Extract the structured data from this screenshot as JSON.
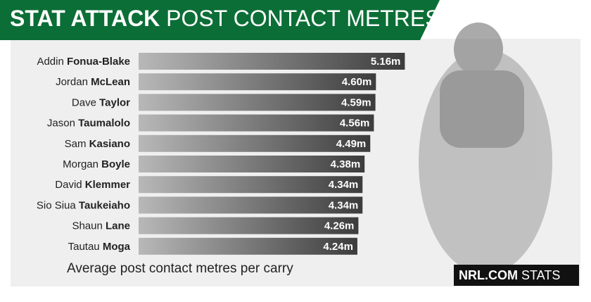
{
  "chart_data": {
    "type": "bar",
    "orientation": "horizontal",
    "title": "STAT ATTACK",
    "subtitle": "POST CONTACT METRES",
    "xlabel": "Average post contact metres per carry",
    "brand": "NRL.COM",
    "brand_suffix": "STATS",
    "categories": [
      "Addin Fonua-Blake",
      "Jordan McLean",
      "Dave Taylor",
      "Jason Taumalolo",
      "Sam Kasiano",
      "Morgan Boyle",
      "David Klemmer",
      "Sio Siua Taukeiaho",
      "Shaun Lane",
      "Tautau Moga"
    ],
    "values": [
      5.16,
      4.6,
      4.59,
      4.56,
      4.49,
      4.38,
      4.34,
      4.34,
      4.26,
      4.24
    ],
    "value_labels": [
      "5.16m",
      "4.60m",
      "4.59m",
      "4.56m",
      "4.49m",
      "4.38m",
      "4.34m",
      "4.34m",
      "4.26m",
      "4.24m"
    ],
    "color": "#3c3c3c",
    "xlim": [
      0,
      6
    ]
  }
}
